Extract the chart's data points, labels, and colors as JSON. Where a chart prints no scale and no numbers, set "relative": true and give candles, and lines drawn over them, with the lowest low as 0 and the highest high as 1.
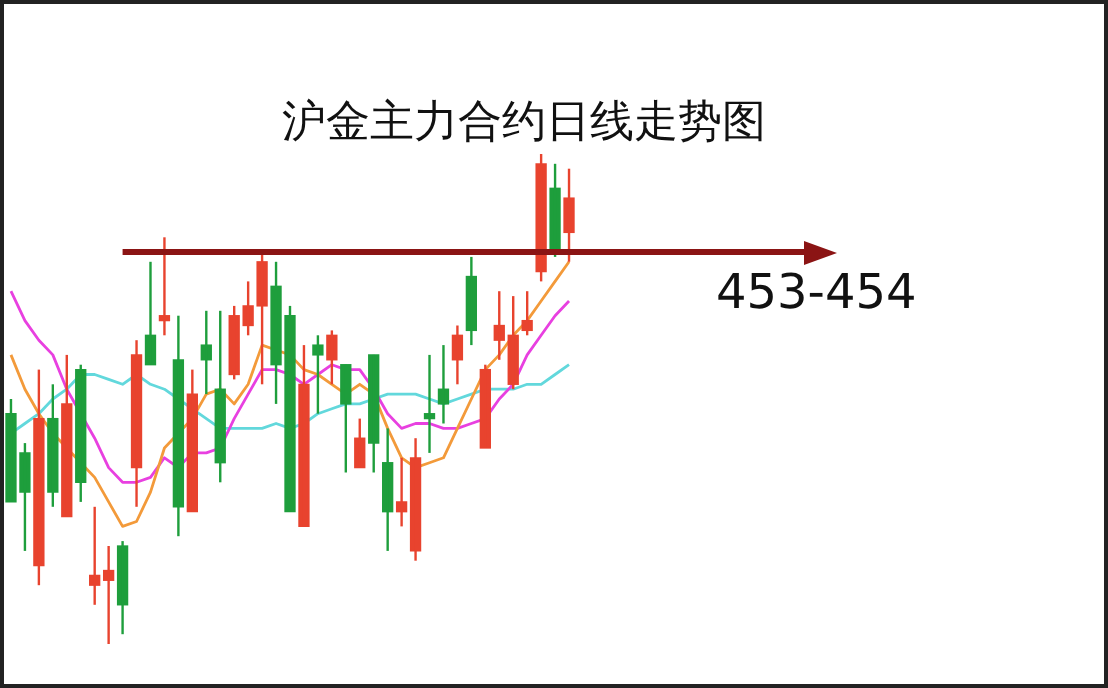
{
  "chart_data": {
    "type": "candlestick",
    "title": "沪金主力合约日线走势图",
    "relative": true,
    "tick_labels": false,
    "legend": false,
    "marker": "none",
    "categories": [
      null,
      null,
      null,
      null,
      null,
      null,
      null,
      null,
      null,
      null,
      null,
      null,
      null,
      null,
      null,
      null,
      null,
      null,
      null,
      null,
      null,
      null,
      null,
      null,
      null,
      null,
      null,
      null,
      null,
      null,
      null,
      null,
      null,
      null,
      null,
      null,
      null,
      null,
      null,
      null,
      null
    ],
    "annotations": [
      "453-454"
    ],
    "ohlc": [
      [
        0.47,
        0.5,
        0.29,
        0.29
      ],
      [
        0.39,
        0.41,
        0.19,
        0.31
      ],
      [
        0.16,
        0.56,
        0.12,
        0.46
      ],
      [
        0.46,
        0.53,
        0.28,
        0.31
      ],
      [
        0.26,
        0.59,
        0.26,
        0.49
      ],
      [
        0.56,
        0.57,
        0.29,
        0.33
      ],
      [
        0.12,
        0.28,
        0.08,
        0.14
      ],
      [
        0.13,
        0.2,
        0,
        0.15
      ],
      [
        0.2,
        0.21,
        0.02,
        0.08
      ],
      [
        0.36,
        0.62,
        0.28,
        0.59
      ],
      [
        0.63,
        0.78,
        0.57,
        0.57
      ],
      [
        0.66,
        0.83,
        0.63,
        0.67
      ],
      [
        0.58,
        0.67,
        0.22,
        0.28
      ],
      [
        0.27,
        0.56,
        0.27,
        0.51
      ],
      [
        0.61,
        0.68,
        0.51,
        0.58
      ],
      [
        0.52,
        0.68,
        0.33,
        0.37
      ],
      [
        0.55,
        0.69,
        0.54,
        0.67
      ],
      [
        0.65,
        0.74,
        0.63,
        0.69
      ],
      [
        0.69,
        0.8,
        0.53,
        0.78
      ],
      [
        0.73,
        0.78,
        0.49,
        0.57
      ],
      [
        0.67,
        0.69,
        0.27,
        0.27
      ],
      [
        0.24,
        0.61,
        0.24,
        0.53
      ],
      [
        0.61,
        0.63,
        0.47,
        0.59
      ],
      [
        0.58,
        0.64,
        0.53,
        0.63
      ],
      [
        0.57,
        0.57,
        0.35,
        0.49
      ],
      [
        0.36,
        0.46,
        0.36,
        0.42
      ],
      [
        0.59,
        0.59,
        0.35,
        0.41
      ],
      [
        0.37,
        0.44,
        0.19,
        0.27
      ],
      [
        0.27,
        0.38,
        0.24,
        0.29
      ],
      [
        0.19,
        0.42,
        0.17,
        0.38
      ],
      [
        0.47,
        0.59,
        0.39,
        0.46
      ],
      [
        0.52,
        0.61,
        0.45,
        0.49
      ],
      [
        0.58,
        0.65,
        0.53,
        0.63
      ],
      [
        0.75,
        0.79,
        0.61,
        0.64
      ],
      [
        0.4,
        0.57,
        0.4,
        0.56
      ],
      [
        0.62,
        0.72,
        0.58,
        0.65
      ],
      [
        0.53,
        0.71,
        0.52,
        0.63
      ],
      [
        0.64,
        0.72,
        0.63,
        0.66
      ],
      [
        0.76,
        1,
        0.74,
        0.98
      ],
      [
        0.93,
        0.98,
        0.79,
        0.8
      ],
      [
        0.84,
        0.97,
        0.78,
        0.91
      ]
    ],
    "colors": [
      "#1e9e3c",
      "#1e9e3c",
      "#e8432e",
      "#1e9e3c",
      "#e8432e",
      "#1e9e3c",
      "#e8432e",
      "#e8432e",
      "#1e9e3c",
      "#e8432e",
      "#1e9e3c",
      "#e8432e",
      "#1e9e3c",
      "#e8432e",
      "#1e9e3c",
      "#1e9e3c",
      "#e8432e",
      "#e8432e",
      "#e8432e",
      "#1e9e3c",
      "#1e9e3c",
      "#e8432e",
      "#1e9e3c",
      "#e8432e",
      "#1e9e3c",
      "#e8432e",
      "#1e9e3c",
      "#1e9e3c",
      "#e8432e",
      "#e8432e",
      "#1e9e3c",
      "#1e9e3c",
      "#e8432e",
      "#1e9e3c",
      "#e8432e",
      "#e8432e",
      "#e8432e",
      "#e8432e",
      "#e8432e",
      "#1e9e3c",
      "#e8432e"
    ],
    "series": [
      {
        "type": "line",
        "color": "#f39a3a",
        "values": [
          0.59,
          0.52,
          0.47,
          0.43,
          0.4,
          0.37,
          0.34,
          0.29,
          0.24,
          0.25,
          0.31,
          0.4,
          0.43,
          0.46,
          0.51,
          0.52,
          0.49,
          0.53,
          0.61,
          0.6,
          0.59,
          0.56,
          0.55,
          0.53,
          0.51,
          0.53,
          0.51,
          0.44,
          0.38,
          0.36,
          0.37,
          0.38,
          0.44,
          0.5,
          0.56,
          0.59,
          0.63,
          0.66,
          0.7,
          0.74,
          0.78
        ]
      },
      {
        "type": "line",
        "color": "#e840e0",
        "values": [
          0.72,
          0.66,
          0.62,
          0.59,
          0.52,
          0.47,
          0.42,
          0.36,
          0.33,
          0.33,
          0.34,
          0.38,
          0.36,
          0.39,
          0.39,
          0.4,
          0.46,
          0.51,
          0.56,
          0.56,
          0.55,
          0.53,
          0.55,
          0.57,
          0.56,
          0.56,
          0.52,
          0.47,
          0.44,
          0.45,
          0.45,
          0.44,
          0.44,
          0.45,
          0.46,
          0.5,
          0.53,
          0.59,
          0.63,
          0.67,
          0.7
        ]
      },
      {
        "type": "line",
        "color": "#62d8dc",
        "values": [
          0.43,
          0.45,
          0.47,
          0.5,
          0.52,
          0.55,
          0.55,
          0.54,
          0.53,
          0.55,
          0.53,
          0.52,
          0.5,
          0.48,
          0.46,
          0.44,
          0.44,
          0.44,
          0.44,
          0.45,
          0.44,
          0.45,
          0.47,
          0.48,
          0.49,
          0.49,
          0.5,
          0.51,
          0.51,
          0.51,
          0.5,
          0.49,
          0.5,
          0.51,
          0.52,
          0.52,
          0.52,
          0.53,
          0.53,
          0.55,
          0.57
        ]
      }
    ],
    "ref_lines": [
      {
        "axis": "y",
        "value": 0.8,
        "color": "#8b1414"
      }
    ]
  }
}
